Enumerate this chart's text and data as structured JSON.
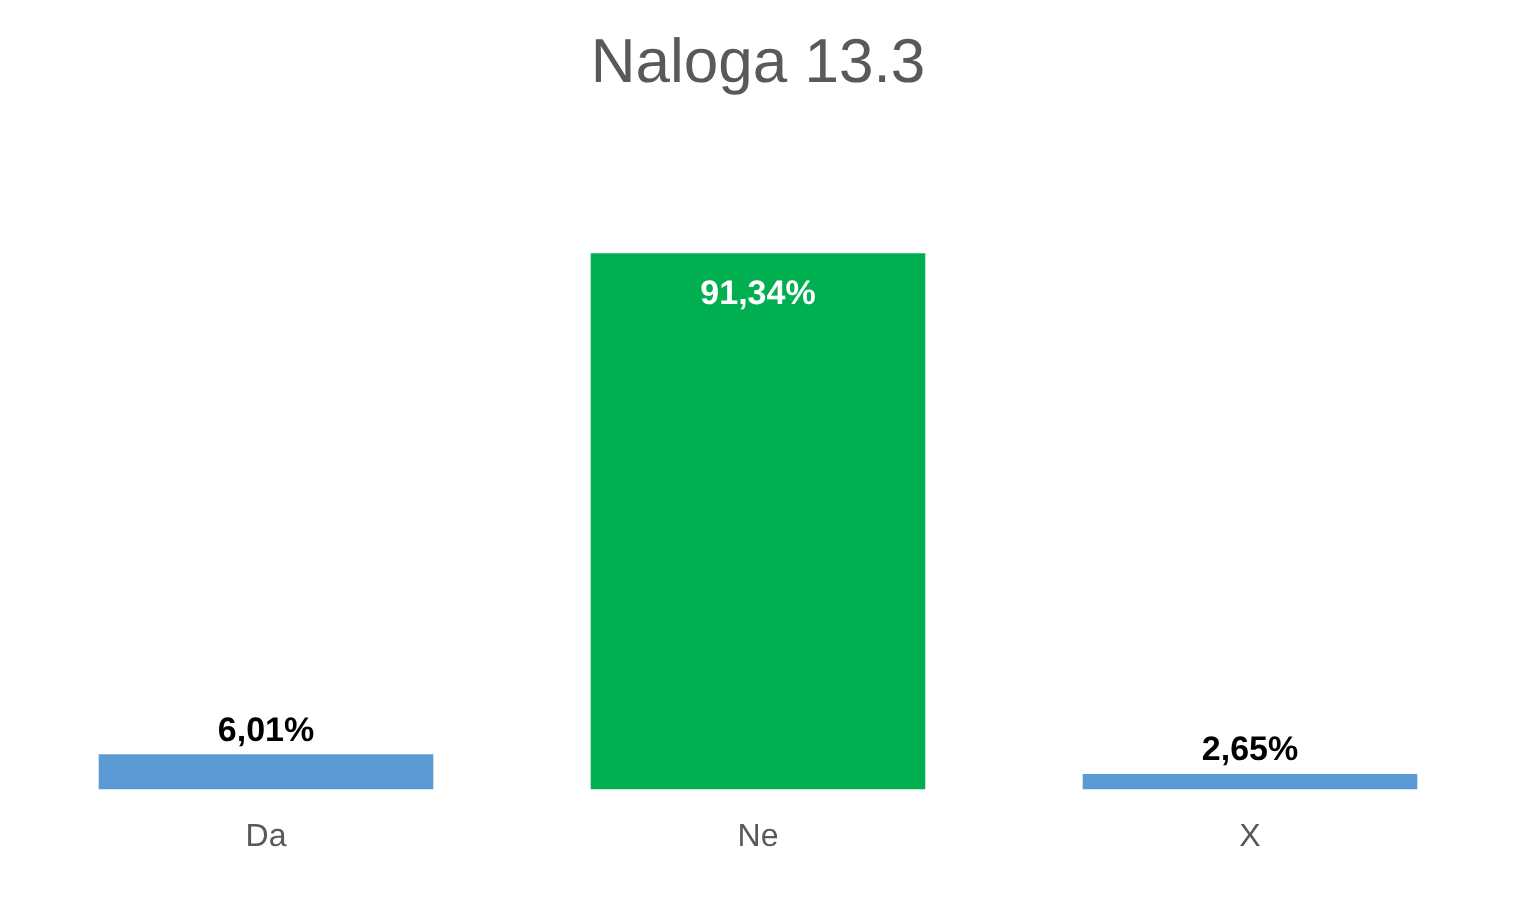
{
  "chart_data": {
    "type": "bar",
    "title": "Naloga 13.3",
    "categories": [
      "Da",
      "Ne",
      "X"
    ],
    "values": [
      6.01,
      91.34,
      2.65
    ],
    "colors": [
      "#5b9bd5",
      "#00b050",
      "#5b9bd5"
    ],
    "value_labels": [
      "6,01%",
      "91,34%",
      "2,65%"
    ],
    "grid": false,
    "legend": false
  }
}
